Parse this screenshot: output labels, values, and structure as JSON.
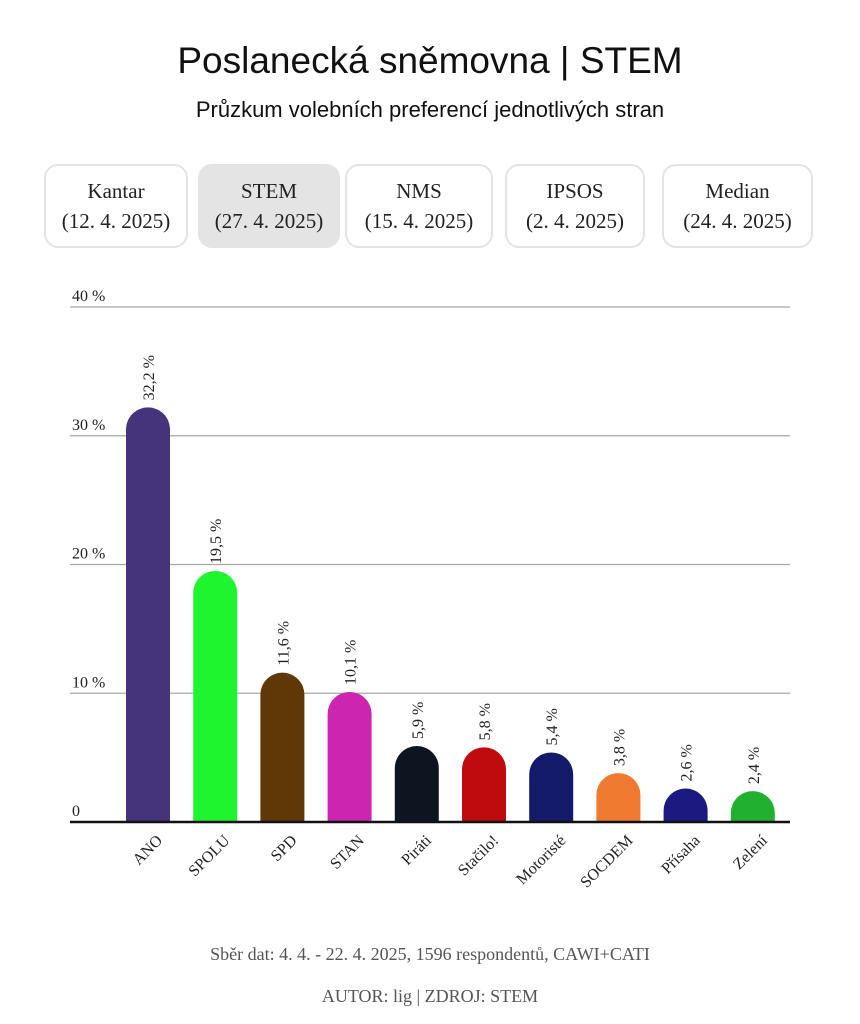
{
  "header": {
    "title": "Poslanecká sněmovna | STEM",
    "subtitle": "Průzkum volebních preferencí jednotlivých stran"
  },
  "tabs": [
    {
      "name": "Kantar",
      "date": "(12. 4. 2025)",
      "active": false
    },
    {
      "name": "STEM",
      "date": "(27. 4. 2025)",
      "active": true
    },
    {
      "name": "NMS",
      "date": "(15. 4. 2025)",
      "active": false
    },
    {
      "name": "IPSOS",
      "date": "(2. 4. 2025)",
      "active": false
    },
    {
      "name": "Median",
      "date": "(24. 4. 2025)",
      "active": false
    }
  ],
  "chart_data": {
    "type": "bar",
    "categories": [
      "ANO",
      "SPOLU",
      "SPD",
      "STAN",
      "Piráti",
      "Stačilo!",
      "Motoristé",
      "SOCDEM",
      "Přísaha",
      "Zelení"
    ],
    "values": [
      32.2,
      19.5,
      11.6,
      10.1,
      5.9,
      5.8,
      5.4,
      3.8,
      2.6,
      2.4
    ],
    "value_labels": [
      "32,2 %",
      "19,5 %",
      "11,6 %",
      "10,1 %",
      "5,9 %",
      "5,8 %",
      "5,4 %",
      "3,8 %",
      "2,6 %",
      "2,4 %"
    ],
    "colors": [
      "#45337c",
      "#1ff52f",
      "#603808",
      "#cc26b0",
      "#0d1520",
      "#bf0a0e",
      "#141a6a",
      "#f07a30",
      "#1c1a80",
      "#22b12e"
    ],
    "yticks": [
      0,
      10,
      20,
      30,
      40
    ],
    "ytick_labels": [
      "0",
      "10 %",
      "20 %",
      "30 %",
      "40 %"
    ],
    "ylim": [
      0,
      40
    ],
    "grid": true
  },
  "footer": {
    "note": "Sběr dat: 4. 4. - 22. 4. 2025, 1596 respondentů, CAWI+CATI",
    "credit": "AUTOR: lig | ZDROJ: STEM"
  }
}
